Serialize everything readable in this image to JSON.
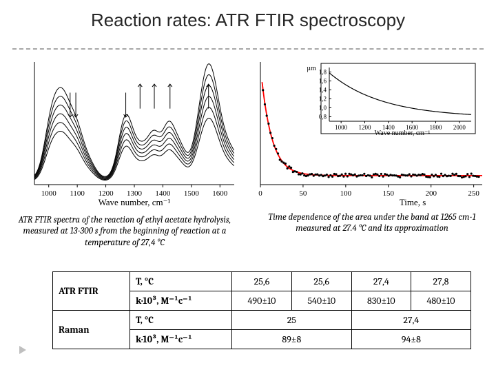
{
  "title": "Reaction rates: ATR FTIR spectroscopy",
  "left_caption": "ATR FTIR spectra of the reaction of ethyl acetate hydrolysis, measured at 13-300 s from the beginning of reaction at a temperature of 27,4 °C",
  "right_caption": "Time dependence of the area under the band at 1265 cm-1 measured at 27.4 °C and its approximation",
  "table": {
    "row1_hdr": "ATR FTIR",
    "row2_hdr": "Raman",
    "param_T": "T, °C",
    "param_k": "k·10³, M⁻¹c⁻¹",
    "atr_T": [
      "25,6",
      "25,6",
      "27,4",
      "27,8"
    ],
    "atr_k": [
      "490±10",
      "540±10",
      "830±10",
      "480±10"
    ],
    "raman_T": [
      "25",
      "27,4"
    ],
    "raman_k": [
      "89±8",
      "94±8"
    ]
  },
  "chart_left": {
    "type": "line-multi",
    "xlim": [
      950,
      1650
    ],
    "ylim": [
      0,
      1
    ],
    "xticks": [
      1000,
      1100,
      1200,
      1300,
      1400,
      1500,
      1600
    ],
    "xlabel": "Wave number, cm⁻¹",
    "line_color": "#000000",
    "n_series": 6,
    "arrows": [
      {
        "x": 1075,
        "dir": "down"
      },
      {
        "x": 1095,
        "dir": "down"
      },
      {
        "x": 1270,
        "dir": "down"
      },
      {
        "x": 1320,
        "dir": "up"
      },
      {
        "x": 1370,
        "dir": "up"
      },
      {
        "x": 1425,
        "dir": "up"
      },
      {
        "x": 1560,
        "dir": "up"
      }
    ],
    "peaks": [
      {
        "x": 1010,
        "h": 0.45
      },
      {
        "x": 1050,
        "h": 0.53
      },
      {
        "x": 1095,
        "h": 0.38
      },
      {
        "x": 1140,
        "h": 0.12
      },
      {
        "x": 1270,
        "h": 0.5
      },
      {
        "x": 1325,
        "h": 0.22
      },
      {
        "x": 1370,
        "h": 0.32
      },
      {
        "x": 1420,
        "h": 0.4
      },
      {
        "x": 1460,
        "h": 0.22
      },
      {
        "x": 1560,
        "h": 0.92
      },
      {
        "x": 1640,
        "h": 0.2
      }
    ],
    "fontsize": 13
  },
  "chart_right": {
    "type": "scatter+line",
    "xlim": [
      0,
      260
    ],
    "ylim": [
      0,
      3.8
    ],
    "xticks": [
      0,
      50,
      100,
      150,
      200,
      250
    ],
    "xlabel": "Time, s",
    "ylabel_top": "µm",
    "line_color": "#ff0000",
    "line_width": 1.8,
    "marker_color": "#000000",
    "marker_size": 1.6,
    "fontsize": 13
  },
  "chart_inset": {
    "type": "line",
    "xlim": [
      900,
      2100
    ],
    "ylim": [
      0.7,
      1.9
    ],
    "xticks": [
      1000,
      1200,
      1400,
      1600,
      1800,
      2000
    ],
    "yticks": [
      0.8,
      1.0,
      1.2,
      1.4,
      1.6,
      1.8
    ],
    "xlabel": "Wave number, cm⁻¹",
    "line_color": "#000000",
    "fontsize": 10
  }
}
